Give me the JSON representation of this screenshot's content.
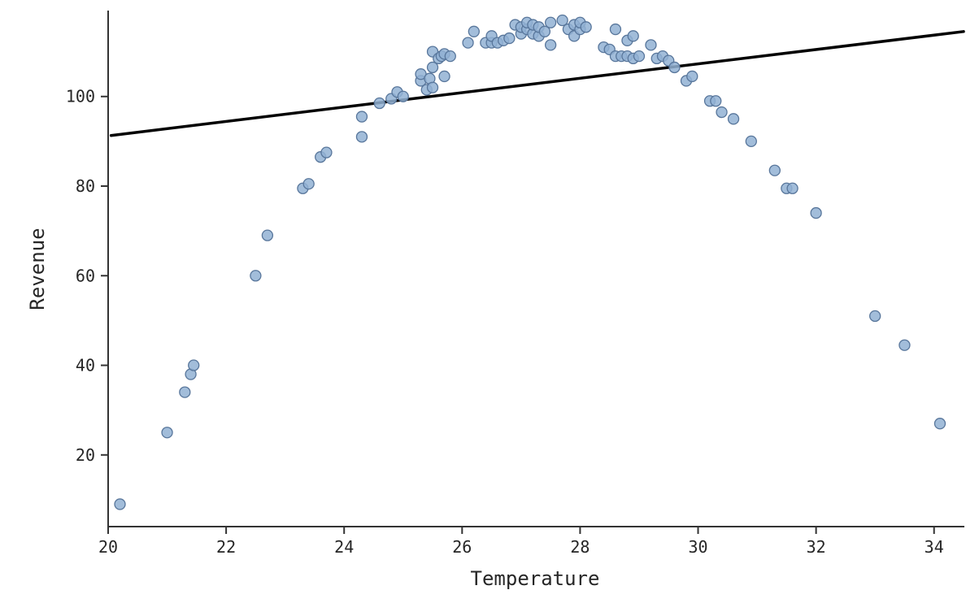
{
  "figure": {
    "background": "#ffffff"
  },
  "chart_data": {
    "type": "scatter",
    "title": "",
    "xlabel": "Temperature",
    "ylabel": "Revenue",
    "xlim": [
      20,
      34.5
    ],
    "ylim": [
      4,
      119
    ],
    "xticks": [
      20,
      22,
      24,
      26,
      28,
      30,
      32,
      34
    ],
    "yticks": [
      20,
      40,
      60,
      80,
      100
    ],
    "grid": false,
    "legend": "none",
    "marker": {
      "fill": "#92b2d3",
      "stroke": "#58769b",
      "radius": 6.5,
      "opacity": 0.85,
      "stroke_width": 1.3
    },
    "points": [
      [
        20.2,
        9
      ],
      [
        21.0,
        25
      ],
      [
        21.3,
        34
      ],
      [
        21.4,
        38
      ],
      [
        21.45,
        40
      ],
      [
        22.5,
        60
      ],
      [
        22.7,
        69
      ],
      [
        23.3,
        79.5
      ],
      [
        23.4,
        80.5
      ],
      [
        23.6,
        86.5
      ],
      [
        23.7,
        87.5
      ],
      [
        24.3,
        91
      ],
      [
        24.3,
        95.5
      ],
      [
        24.6,
        98.5
      ],
      [
        24.8,
        99.5
      ],
      [
        24.9,
        101
      ],
      [
        25.0,
        100
      ],
      [
        25.3,
        103.5
      ],
      [
        25.3,
        105
      ],
      [
        25.4,
        101.5
      ],
      [
        25.45,
        104
      ],
      [
        25.5,
        102
      ],
      [
        25.5,
        106.5
      ],
      [
        25.5,
        110
      ],
      [
        25.6,
        108.5
      ],
      [
        25.65,
        109
      ],
      [
        25.7,
        104.5
      ],
      [
        25.7,
        109.5
      ],
      [
        25.8,
        109
      ],
      [
        26.1,
        112
      ],
      [
        26.2,
        114.5
      ],
      [
        26.4,
        112
      ],
      [
        26.5,
        112
      ],
      [
        26.5,
        113.5
      ],
      [
        26.6,
        112
      ],
      [
        26.7,
        112.5
      ],
      [
        26.8,
        113
      ],
      [
        26.9,
        116
      ],
      [
        27.0,
        114
      ],
      [
        27.0,
        115.5
      ],
      [
        27.1,
        115
      ],
      [
        27.1,
        116.5
      ],
      [
        27.2,
        114
      ],
      [
        27.2,
        116
      ],
      [
        27.3,
        113.5
      ],
      [
        27.3,
        115.5
      ],
      [
        27.4,
        114.5
      ],
      [
        27.5,
        111.5
      ],
      [
        27.5,
        116.5
      ],
      [
        27.7,
        117
      ],
      [
        27.8,
        115
      ],
      [
        27.9,
        113.5
      ],
      [
        27.9,
        116
      ],
      [
        28.0,
        115
      ],
      [
        28.0,
        116.5
      ],
      [
        28.1,
        115.5
      ],
      [
        28.4,
        111
      ],
      [
        28.5,
        110.5
      ],
      [
        28.6,
        109
      ],
      [
        28.6,
        115
      ],
      [
        28.7,
        109
      ],
      [
        28.8,
        109
      ],
      [
        28.8,
        112.5
      ],
      [
        28.9,
        108.5
      ],
      [
        28.9,
        113.5
      ],
      [
        29.0,
        109
      ],
      [
        29.2,
        111.5
      ],
      [
        29.3,
        108.5
      ],
      [
        29.4,
        109
      ],
      [
        29.5,
        108
      ],
      [
        29.6,
        106.5
      ],
      [
        29.8,
        103.5
      ],
      [
        29.9,
        104.5
      ],
      [
        30.2,
        99
      ],
      [
        30.3,
        99
      ],
      [
        30.4,
        96.5
      ],
      [
        30.6,
        95
      ],
      [
        30.9,
        90
      ],
      [
        31.3,
        83.5
      ],
      [
        31.5,
        79.5
      ],
      [
        31.6,
        79.5
      ],
      [
        32.0,
        74
      ],
      [
        33.0,
        51
      ],
      [
        33.5,
        44.5
      ],
      [
        34.1,
        27
      ]
    ],
    "trend_line": {
      "color": "#000000",
      "width": 3.5,
      "x": [
        20.05,
        34.5
      ],
      "y": [
        91.3,
        114.5
      ]
    }
  }
}
